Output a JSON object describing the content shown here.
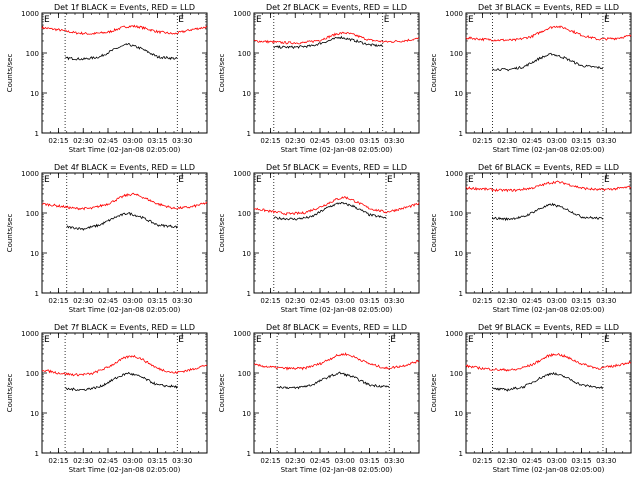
{
  "colors": {
    "events": "#000000",
    "lld": "#ff0000",
    "axes": "#000000"
  },
  "chart_data": [
    {
      "type": "line",
      "title": "Det 1f BLACK = Events, RED = LLD",
      "xlabel": "Start Time (02-Jan-08 02:05:00)",
      "ylabel": "Counts/sec",
      "yscale": "log",
      "ylim": [
        1,
        1000
      ],
      "xlim": [
        "02:05",
        "03:45"
      ],
      "xticks": [
        "02:15",
        "02:30",
        "02:45",
        "03:00",
        "03:15",
        "03:30"
      ],
      "yticks": [
        "1",
        "10",
        "100",
        "1000"
      ],
      "markers": [
        "02:19",
        "03:27"
      ],
      "marker_labels": {
        "left": "E",
        "right": "E"
      },
      "series": [
        {
          "name": "LLD",
          "color": "red",
          "x": [
            "02:05",
            "02:15",
            "02:25",
            "02:35",
            "02:45",
            "02:55",
            "03:00",
            "03:05",
            "03:15",
            "03:25",
            "03:35",
            "03:45"
          ],
          "y": [
            430,
            380,
            320,
            300,
            330,
            450,
            470,
            440,
            340,
            300,
            380,
            450
          ]
        },
        {
          "name": "Events",
          "color": "black",
          "x": [
            "02:19",
            "02:30",
            "02:40",
            "02:50",
            "02:57",
            "03:05",
            "03:15",
            "03:27"
          ],
          "y": [
            75,
            70,
            80,
            130,
            165,
            130,
            80,
            72
          ]
        }
      ]
    },
    {
      "type": "line",
      "title": "Det 2f BLACK = Events, RED = LLD",
      "xlabel": "Start Time (02-Jan-08 02:05:00)",
      "ylabel": "Counts/sec",
      "yscale": "log",
      "ylim": [
        1,
        1000
      ],
      "xlim": [
        "02:05",
        "03:45"
      ],
      "xticks": [
        "02:15",
        "02:30",
        "02:45",
        "03:00",
        "03:15",
        "03:30"
      ],
      "yticks": [
        "1",
        "10",
        "100",
        "1000"
      ],
      "markers": [
        "02:17",
        "03:23"
      ],
      "marker_labels": {
        "left": "E",
        "right": "E"
      },
      "series": [
        {
          "name": "LLD",
          "color": "red",
          "x": [
            "02:05",
            "02:15",
            "02:25",
            "02:35",
            "02:45",
            "02:55",
            "03:00",
            "03:05",
            "03:15",
            "03:25",
            "03:35",
            "03:45"
          ],
          "y": [
            200,
            190,
            180,
            180,
            210,
            300,
            320,
            290,
            210,
            190,
            200,
            230
          ]
        },
        {
          "name": "Events",
          "color": "black",
          "x": [
            "02:17",
            "02:30",
            "02:40",
            "02:50",
            "02:57",
            "03:05",
            "03:15",
            "03:23"
          ],
          "y": [
            140,
            140,
            150,
            200,
            250,
            210,
            160,
            150
          ]
        }
      ]
    },
    {
      "type": "line",
      "title": "Det 3f BLACK = Events, RED = LLD",
      "xlabel": "Start Time (02-Jan-08 02:05:00)",
      "ylabel": "Counts/sec",
      "yscale": "log",
      "ylim": [
        1,
        1000
      ],
      "xlim": [
        "02:05",
        "03:45"
      ],
      "xticks": [
        "02:15",
        "02:30",
        "02:45",
        "03:00",
        "03:15",
        "03:30"
      ],
      "yticks": [
        "1",
        "10",
        "100",
        "1000"
      ],
      "markers": [
        "02:21",
        "03:28"
      ],
      "marker_labels": {
        "left": "E",
        "right": "E"
      },
      "series": [
        {
          "name": "LLD",
          "color": "red",
          "x": [
            "02:05",
            "02:15",
            "02:25",
            "02:35",
            "02:45",
            "02:55",
            "03:00",
            "03:05",
            "03:15",
            "03:25",
            "03:35",
            "03:45"
          ],
          "y": [
            240,
            220,
            210,
            210,
            260,
            420,
            470,
            420,
            280,
            220,
            230,
            270
          ]
        },
        {
          "name": "Events",
          "color": "black",
          "x": [
            "02:21",
            "02:30",
            "02:40",
            "02:50",
            "02:57",
            "03:05",
            "03:15",
            "03:28"
          ],
          "y": [
            40,
            38,
            45,
            75,
            95,
            75,
            48,
            42
          ]
        }
      ]
    },
    {
      "type": "line",
      "title": "Det 4f BLACK = Events, RED = LLD",
      "xlabel": "Start Time (02-Jan-08 02:05:00)",
      "ylabel": "Counts/sec",
      "yscale": "log",
      "ylim": [
        1,
        1000
      ],
      "xlim": [
        "02:05",
        "03:45"
      ],
      "xticks": [
        "02:15",
        "02:30",
        "02:45",
        "03:00",
        "03:15",
        "03:30"
      ],
      "yticks": [
        "1",
        "10",
        "100",
        "1000"
      ],
      "markers": [
        "02:20",
        "03:27"
      ],
      "marker_labels": {
        "left": "E",
        "right": "E"
      },
      "series": [
        {
          "name": "LLD",
          "color": "red",
          "x": [
            "02:05",
            "02:15",
            "02:25",
            "02:35",
            "02:45",
            "02:55",
            "03:00",
            "03:05",
            "03:15",
            "03:25",
            "03:35",
            "03:45"
          ],
          "y": [
            170,
            150,
            130,
            130,
            170,
            270,
            300,
            260,
            170,
            130,
            140,
            180
          ]
        },
        {
          "name": "Events",
          "color": "black",
          "x": [
            "02:20",
            "02:30",
            "02:40",
            "02:50",
            "02:57",
            "03:05",
            "03:15",
            "03:27"
          ],
          "y": [
            45,
            40,
            50,
            80,
            100,
            80,
            50,
            45
          ]
        }
      ]
    },
    {
      "type": "line",
      "title": "Det 5f BLACK = Events, RED = LLD",
      "xlabel": "Start Time (02-Jan-08 02:05:00)",
      "ylabel": "Counts/sec",
      "yscale": "log",
      "ylim": [
        1,
        1000
      ],
      "xlim": [
        "02:05",
        "03:45"
      ],
      "xticks": [
        "02:15",
        "02:30",
        "02:45",
        "03:00",
        "03:15",
        "03:30"
      ],
      "yticks": [
        "1",
        "10",
        "100",
        "1000"
      ],
      "markers": [
        "02:17",
        "03:25"
      ],
      "marker_labels": {
        "left": "E",
        "right": "E"
      },
      "series": [
        {
          "name": "LLD",
          "color": "red",
          "x": [
            "02:05",
            "02:15",
            "02:25",
            "02:35",
            "02:45",
            "02:55",
            "03:00",
            "03:05",
            "03:15",
            "03:25",
            "03:35",
            "03:45"
          ],
          "y": [
            130,
            110,
            95,
            100,
            140,
            220,
            250,
            210,
            130,
            105,
            130,
            170
          ]
        },
        {
          "name": "Events",
          "color": "black",
          "x": [
            "02:17",
            "02:30",
            "02:40",
            "02:50",
            "02:57",
            "03:05",
            "03:15",
            "03:25"
          ],
          "y": [
            75,
            70,
            80,
            140,
            180,
            150,
            90,
            75
          ]
        }
      ]
    },
    {
      "type": "line",
      "title": "Det 6f BLACK = Events, RED = LLD",
      "xlabel": "Start Time (02-Jan-08 02:05:00)",
      "ylabel": "Counts/sec",
      "yscale": "log",
      "ylim": [
        1,
        1000
      ],
      "xlim": [
        "02:05",
        "03:45"
      ],
      "xticks": [
        "02:15",
        "02:30",
        "02:45",
        "03:00",
        "03:15",
        "03:30"
      ],
      "yticks": [
        "1",
        "10",
        "100",
        "1000"
      ],
      "markers": [
        "02:21",
        "03:28"
      ],
      "marker_labels": {
        "left": "E",
        "right": "E"
      },
      "series": [
        {
          "name": "LLD",
          "color": "red",
          "x": [
            "02:05",
            "02:15",
            "02:25",
            "02:35",
            "02:45",
            "02:55",
            "03:00",
            "03:05",
            "03:15",
            "03:25",
            "03:35",
            "03:45"
          ],
          "y": [
            420,
            400,
            370,
            370,
            420,
            560,
            600,
            550,
            420,
            380,
            400,
            450
          ]
        },
        {
          "name": "Events",
          "color": "black",
          "x": [
            "02:21",
            "02:30",
            "02:40",
            "02:50",
            "02:57",
            "03:05",
            "03:15",
            "03:28"
          ],
          "y": [
            75,
            70,
            80,
            130,
            165,
            130,
            80,
            72
          ]
        }
      ]
    },
    {
      "type": "line",
      "title": "Det 7f BLACK = Events, RED = LLD",
      "xlabel": "Start Time (02-Jan-08 02:05:00)",
      "ylabel": "Counts/sec",
      "yscale": "log",
      "ylim": [
        1,
        1000
      ],
      "xlim": [
        "02:05",
        "03:45"
      ],
      "xticks": [
        "02:15",
        "02:30",
        "02:45",
        "03:00",
        "03:15",
        "03:30"
      ],
      "yticks": [
        "1",
        "10",
        "100",
        "1000"
      ],
      "markers": [
        "02:19",
        "03:27"
      ],
      "marker_labels": {
        "left": "E",
        "right": "E"
      },
      "series": [
        {
          "name": "LLD",
          "color": "red",
          "x": [
            "02:05",
            "02:15",
            "02:25",
            "02:35",
            "02:45",
            "02:55",
            "03:00",
            "03:05",
            "03:15",
            "03:25",
            "03:35",
            "03:45"
          ],
          "y": [
            120,
            100,
            90,
            95,
            140,
            240,
            270,
            230,
            130,
            100,
            120,
            160
          ]
        },
        {
          "name": "Events",
          "color": "black",
          "x": [
            "02:19",
            "02:30",
            "02:40",
            "02:50",
            "02:57",
            "03:05",
            "03:15",
            "03:27"
          ],
          "y": [
            40,
            38,
            45,
            75,
            100,
            80,
            50,
            45
          ]
        }
      ]
    },
    {
      "type": "line",
      "title": "Det 8f BLACK = Events, RED = LLD",
      "xlabel": "Start Time (02-Jan-08 02:05:00)",
      "ylabel": "Counts/sec",
      "yscale": "log",
      "ylim": [
        1,
        1000
      ],
      "xlim": [
        "02:05",
        "03:45"
      ],
      "xticks": [
        "02:15",
        "02:30",
        "02:45",
        "03:00",
        "03:15",
        "03:30"
      ],
      "yticks": [
        "1",
        "10",
        "100",
        "1000"
      ],
      "markers": [
        "02:19",
        "03:27"
      ],
      "marker_labels": {
        "left": "E",
        "right": "E"
      },
      "series": [
        {
          "name": "LLD",
          "color": "red",
          "x": [
            "02:05",
            "02:15",
            "02:25",
            "02:35",
            "02:45",
            "02:55",
            "03:00",
            "03:05",
            "03:15",
            "03:25",
            "03:35",
            "03:45"
          ],
          "y": [
            160,
            140,
            130,
            130,
            170,
            270,
            300,
            260,
            170,
            130,
            150,
            200
          ]
        },
        {
          "name": "Events",
          "color": "black",
          "x": [
            "02:19",
            "02:30",
            "02:40",
            "02:50",
            "02:57",
            "03:05",
            "03:15",
            "03:27"
          ],
          "y": [
            45,
            42,
            50,
            80,
            100,
            80,
            50,
            45
          ]
        }
      ]
    },
    {
      "type": "line",
      "title": "Det 9f BLACK = Events, RED = LLD",
      "xlabel": "Start Time (02-Jan-08 02:05:00)",
      "ylabel": "Counts/sec",
      "yscale": "log",
      "ylim": [
        1,
        1000
      ],
      "xlim": [
        "02:05",
        "03:45"
      ],
      "xticks": [
        "02:15",
        "02:30",
        "02:45",
        "03:00",
        "03:15",
        "03:30"
      ],
      "yticks": [
        "1",
        "10",
        "100",
        "1000"
      ],
      "markers": [
        "02:21",
        "03:28"
      ],
      "marker_labels": {
        "left": "E",
        "right": "E"
      },
      "series": [
        {
          "name": "LLD",
          "color": "red",
          "x": [
            "02:05",
            "02:15",
            "02:25",
            "02:35",
            "02:45",
            "02:55",
            "03:00",
            "03:05",
            "03:15",
            "03:25",
            "03:35",
            "03:45"
          ],
          "y": [
            150,
            130,
            120,
            120,
            160,
            270,
            300,
            260,
            170,
            130,
            150,
            190
          ]
        },
        {
          "name": "Events",
          "color": "black",
          "x": [
            "02:21",
            "02:30",
            "02:40",
            "02:50",
            "02:57",
            "03:05",
            "03:15",
            "03:28"
          ],
          "y": [
            40,
            38,
            45,
            75,
            100,
            80,
            50,
            42
          ]
        }
      ]
    }
  ]
}
